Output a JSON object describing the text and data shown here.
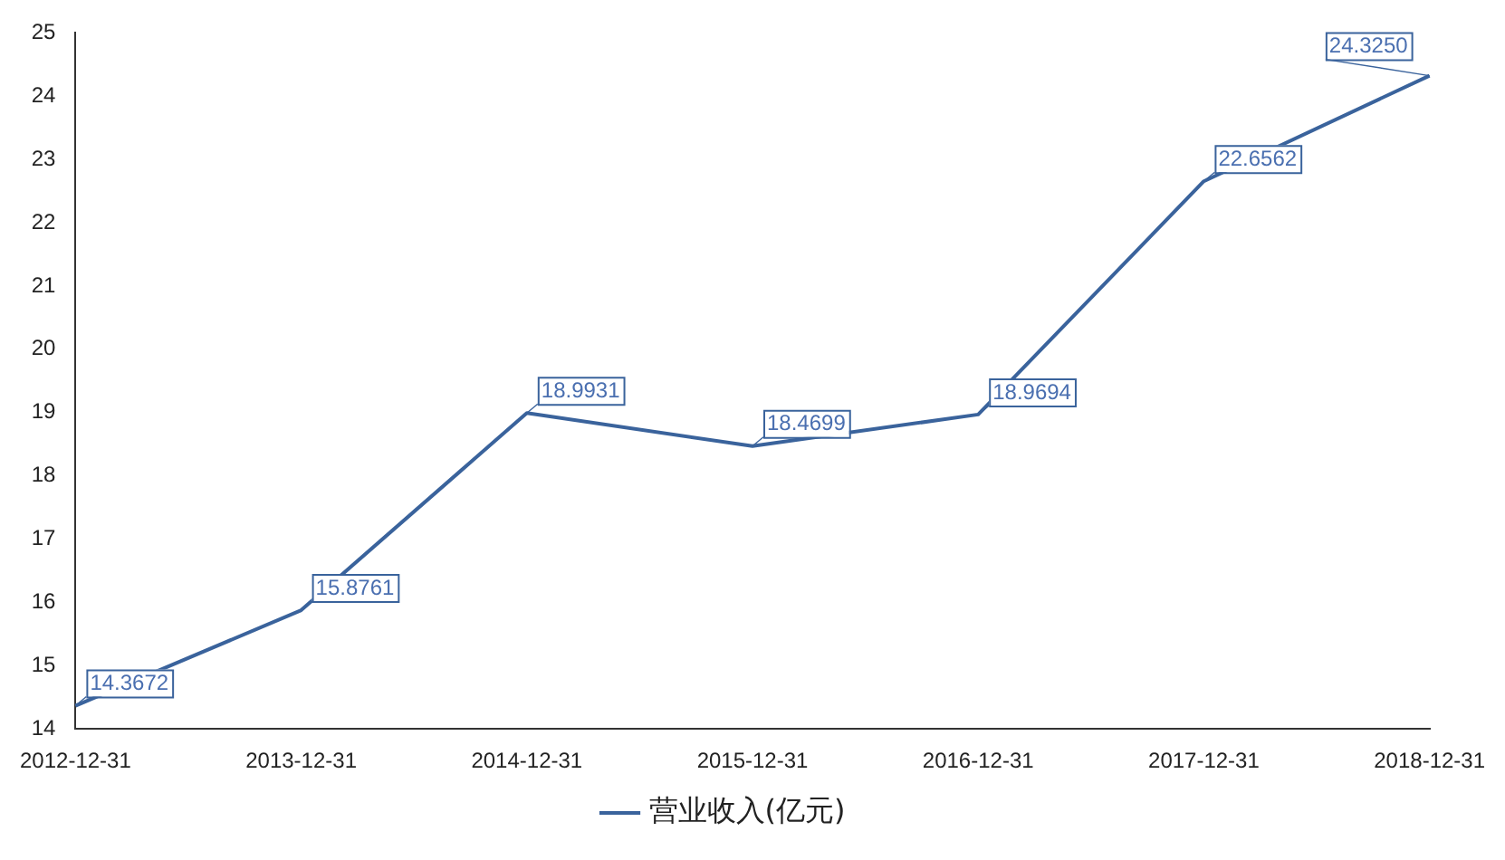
{
  "chart_data": {
    "type": "line",
    "categories": [
      "2012-12-31",
      "2013-12-31",
      "2014-12-31",
      "2015-12-31",
      "2016-12-31",
      "2017-12-31",
      "2018-12-31"
    ],
    "series": [
      {
        "name": "营业收入(亿元)",
        "color": "#3a639c",
        "values": [
          14.3672,
          15.8761,
          18.9931,
          18.4699,
          18.9694,
          22.6562,
          24.325
        ]
      }
    ],
    "value_labels": [
      "14.3672",
      "15.8761",
      "18.9931",
      "18.4699",
      "18.9694",
      "22.6562",
      "24.3250"
    ],
    "ylim": [
      14,
      25
    ],
    "yticks": [
      14,
      15,
      16,
      17,
      18,
      19,
      20,
      21,
      22,
      23,
      24,
      25
    ],
    "grid": false,
    "legend": "bottom",
    "marker": "none",
    "line_style": "solid"
  }
}
